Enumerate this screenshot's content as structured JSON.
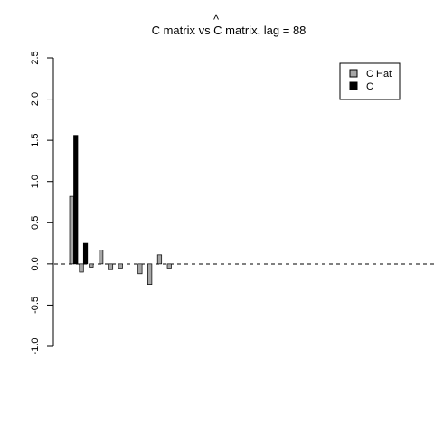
{
  "chart_data": {
    "type": "bar",
    "title": "C matrix vs C matrix, lag = 88",
    "title_hat_symbol": "^",
    "ylim": [
      -1.0,
      2.5
    ],
    "y_ticks": [
      "-1.0",
      "-0.5",
      "0.0",
      "0.5",
      "1.0",
      "1.5",
      "2.0",
      "2.5"
    ],
    "xlabel": "",
    "ylabel": "",
    "legend_position": "top-right",
    "series": [
      {
        "name": "C Hat",
        "color": "#a6a6a6",
        "values": [
          0.82,
          -0.1,
          -0.04,
          0.17,
          -0.07,
          -0.05,
          0.0,
          -0.12,
          -0.25,
          0.11,
          -0.05
        ]
      },
      {
        "name": "C",
        "color": "#000000",
        "values": [
          1.56,
          0.25,
          0.0,
          0.0,
          0.0,
          0.0,
          0.0,
          0.0,
          0.0,
          0.0,
          0.0
        ]
      }
    ],
    "zero_line": "dashed"
  }
}
